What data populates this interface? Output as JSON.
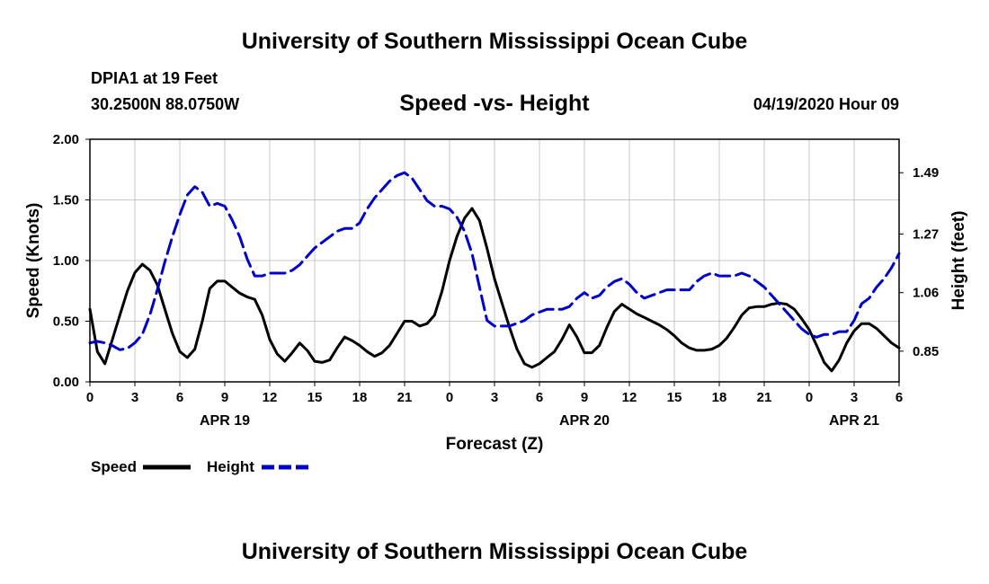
{
  "header": {
    "title": "University of Southern Mississippi Ocean Cube",
    "station": "DPIA1 at 19 Feet",
    "coords": "30.2500N 88.0750W",
    "chart_title": "Speed -vs- Height",
    "time": "04/19/2020 Hour 09"
  },
  "footer": {
    "title": "University of Southern Mississippi Ocean Cube"
  },
  "chart_data": {
    "type": "line",
    "title": "Speed -vs- Height",
    "xlabel": "Forecast (Z)",
    "ylabel": "Speed (Knots)",
    "y2label": "Height (feet)",
    "x_range_hours": [
      0,
      54
    ],
    "xtick_hours": [
      0,
      3,
      6,
      9,
      12,
      15,
      18,
      21,
      24,
      27,
      30,
      33,
      36,
      39,
      42,
      45,
      48,
      51,
      54
    ],
    "xtick_labels": [
      "0",
      "3",
      "6",
      "9",
      "12",
      "15",
      "18",
      "21",
      "0",
      "3",
      "6",
      "9",
      "12",
      "15",
      "18",
      "21",
      "0",
      "3",
      "6"
    ],
    "date_labels": [
      {
        "hour": 9,
        "label": "APR 19"
      },
      {
        "hour": 33,
        "label": "APR 20"
      },
      {
        "hour": 51,
        "label": "APR 21"
      }
    ],
    "y_left": {
      "min": 0,
      "max": 2,
      "ticks": [
        0,
        0.5,
        1,
        1.5,
        2
      ],
      "tick_labels": [
        "0.00",
        "0.50",
        "1.00",
        "1.50",
        "2.00"
      ]
    },
    "y_right": {
      "min": 0.74,
      "max": 1.61,
      "ticks": [
        0.85,
        1.06,
        1.27,
        1.49
      ],
      "tick_labels": [
        "0.85",
        "1.06",
        "1.27",
        "1.49"
      ]
    },
    "grid": true,
    "legend": {
      "placement": "bottom-left",
      "speed_label": "Speed",
      "height_label": "Height"
    },
    "series": [
      {
        "name": "Speed",
        "axis": "left",
        "color": "#000000",
        "dash": "solid",
        "x": [
          0,
          0.5,
          1,
          1.5,
          2,
          2.5,
          3,
          3.5,
          4,
          4.5,
          5,
          5.5,
          6,
          6.5,
          7,
          7.5,
          8,
          8.5,
          9,
          9.5,
          10,
          10.5,
          11,
          11.5,
          12,
          12.5,
          13,
          13.5,
          14,
          14.5,
          15,
          15.5,
          16,
          16.5,
          17,
          17.5,
          18,
          18.5,
          19,
          19.5,
          20,
          20.5,
          21,
          21.5,
          22,
          22.5,
          23,
          23.5,
          24,
          24.5,
          25,
          25.5,
          26,
          26.5,
          27,
          27.5,
          28,
          28.5,
          29,
          29.5,
          30,
          30.5,
          31,
          31.5,
          32,
          32.5,
          33,
          33.5,
          34,
          34.5,
          35,
          35.5,
          36,
          36.5,
          37,
          37.5,
          38,
          38.5,
          39,
          39.5,
          40,
          40.5,
          41,
          41.5,
          42,
          42.5,
          43,
          43.5,
          44,
          44.5,
          45,
          45.5,
          46,
          46.5,
          47,
          47.5,
          48,
          48.5,
          49,
          49.5,
          50,
          50.5,
          51,
          51.5,
          52,
          52.5,
          53,
          53.5,
          54
        ],
        "values": [
          0.6,
          0.25,
          0.15,
          0.35,
          0.55,
          0.75,
          0.9,
          0.97,
          0.92,
          0.8,
          0.6,
          0.4,
          0.25,
          0.2,
          0.27,
          0.5,
          0.77,
          0.83,
          0.83,
          0.78,
          0.73,
          0.7,
          0.68,
          0.55,
          0.35,
          0.23,
          0.17,
          0.24,
          0.32,
          0.26,
          0.17,
          0.16,
          0.18,
          0.28,
          0.37,
          0.34,
          0.3,
          0.25,
          0.21,
          0.24,
          0.3,
          0.4,
          0.5,
          0.5,
          0.46,
          0.48,
          0.55,
          0.75,
          1.0,
          1.2,
          1.35,
          1.43,
          1.33,
          1.1,
          0.85,
          0.65,
          0.45,
          0.27,
          0.15,
          0.12,
          0.15,
          0.2,
          0.25,
          0.35,
          0.47,
          0.37,
          0.24,
          0.24,
          0.3,
          0.45,
          0.58,
          0.64,
          0.6,
          0.56,
          0.53,
          0.5,
          0.47,
          0.43,
          0.38,
          0.32,
          0.28,
          0.26,
          0.26,
          0.27,
          0.3,
          0.36,
          0.45,
          0.55,
          0.61,
          0.62,
          0.62,
          0.64,
          0.65,
          0.64,
          0.6,
          0.52,
          0.43,
          0.3,
          0.16,
          0.09,
          0.18,
          0.32,
          0.42,
          0.48,
          0.48,
          0.44,
          0.38,
          0.32,
          0.28
        ]
      },
      {
        "name": "Height",
        "axis": "right",
        "color": "#0000cc",
        "dash": "dashed",
        "x": [
          0,
          0.5,
          1,
          1.5,
          2,
          2.5,
          3,
          3.5,
          4,
          4.5,
          5,
          5.5,
          6,
          6.5,
          7,
          7.5,
          8,
          8.5,
          9,
          9.5,
          10,
          10.5,
          11,
          11.5,
          12,
          12.5,
          13,
          13.5,
          14,
          14.5,
          15,
          15.5,
          16,
          16.5,
          17,
          17.5,
          18,
          18.5,
          19,
          19.5,
          20,
          20.5,
          21,
          21.5,
          22,
          22.5,
          23,
          23.5,
          24,
          24.5,
          25,
          25.5,
          26,
          26.5,
          27,
          27.5,
          28,
          28.5,
          29,
          29.5,
          30,
          30.5,
          31,
          31.5,
          32,
          32.5,
          33,
          33.5,
          34,
          34.5,
          35,
          35.5,
          36,
          36.5,
          37,
          37.5,
          38,
          38.5,
          39,
          39.5,
          40,
          40.5,
          41,
          41.5,
          42,
          42.5,
          43,
          43.5,
          44,
          44.5,
          45,
          45.5,
          46,
          46.5,
          47,
          47.5,
          48,
          48.5,
          49,
          49.5,
          50,
          50.5,
          51,
          51.5,
          52,
          52.5,
          53,
          53.5,
          54
        ],
        "values": [
          0.88,
          0.885,
          0.88,
          0.87,
          0.855,
          0.86,
          0.88,
          0.91,
          0.98,
          1.07,
          1.17,
          1.26,
          1.34,
          1.41,
          1.44,
          1.42,
          1.37,
          1.38,
          1.37,
          1.32,
          1.26,
          1.18,
          1.12,
          1.12,
          1.13,
          1.13,
          1.13,
          1.14,
          1.16,
          1.19,
          1.22,
          1.24,
          1.26,
          1.28,
          1.29,
          1.29,
          1.31,
          1.36,
          1.4,
          1.43,
          1.46,
          1.48,
          1.49,
          1.47,
          1.43,
          1.39,
          1.37,
          1.37,
          1.36,
          1.33,
          1.28,
          1.2,
          1.08,
          0.96,
          0.94,
          0.94,
          0.94,
          0.95,
          0.96,
          0.98,
          0.99,
          1.0,
          1.0,
          1.0,
          1.01,
          1.04,
          1.06,
          1.04,
          1.05,
          1.08,
          1.1,
          1.11,
          1.09,
          1.06,
          1.04,
          1.05,
          1.06,
          1.07,
          1.07,
          1.07,
          1.07,
          1.1,
          1.12,
          1.13,
          1.12,
          1.12,
          1.12,
          1.13,
          1.12,
          1.1,
          1.08,
          1.05,
          1.02,
          0.99,
          0.96,
          0.93,
          0.91,
          0.9,
          0.91,
          0.91,
          0.92,
          0.92,
          0.96,
          1.02,
          1.04,
          1.08,
          1.11,
          1.15,
          1.2
        ]
      }
    ]
  }
}
